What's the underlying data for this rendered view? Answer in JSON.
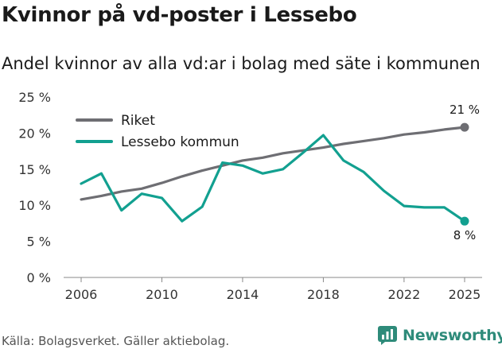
{
  "header": {
    "title": "Kvinnor på vd-poster i Lessebo",
    "subtitle": "Andel kvinnor av alla vd:ar i bolag med säte i kommunen"
  },
  "footer": {
    "source": "Källa: Bolagsverket. Gäller aktiebolag.",
    "brand": "Newsworthy",
    "brand_color": "#2e8b7a"
  },
  "chart_data": {
    "type": "line",
    "title": "Kvinnor på vd-poster i Lessebo",
    "subtitle": "Andel kvinnor av alla vd:ar i bolag med säte i kommunen",
    "xlabel": "",
    "ylabel": "",
    "xlim": [
      2006,
      2025
    ],
    "ylim": [
      0,
      25
    ],
    "x_ticks": [
      2006,
      2010,
      2014,
      2018,
      2022,
      2025
    ],
    "y_ticks": [
      0,
      5,
      10,
      15,
      20,
      25
    ],
    "y_tick_labels": [
      "0 %",
      "5 %",
      "10 %",
      "15 %",
      "20 %",
      "25 %"
    ],
    "grid": false,
    "legend_position": "top-left",
    "x": [
      2006,
      2007,
      2008,
      2009,
      2010,
      2011,
      2012,
      2013,
      2014,
      2015,
      2016,
      2017,
      2018,
      2019,
      2020,
      2021,
      2022,
      2023,
      2024,
      2025
    ],
    "series": [
      {
        "name": "Riket",
        "color": "#6e6e73",
        "values": [
          10.8,
          11.3,
          11.9,
          12.3,
          13.1,
          14.0,
          14.8,
          15.5,
          16.2,
          16.6,
          17.2,
          17.6,
          18.0,
          18.5,
          18.9,
          19.3,
          19.8,
          20.1,
          20.5,
          20.8
        ],
        "end_label": "21 %"
      },
      {
        "name": "Lessebo kommun",
        "color": "#12a090",
        "values": [
          13.0,
          14.4,
          9.3,
          11.6,
          11.0,
          7.8,
          9.8,
          15.9,
          15.5,
          14.4,
          15.0,
          17.3,
          19.7,
          16.2,
          14.6,
          12.0,
          9.9,
          9.7,
          9.7,
          7.8
        ],
        "end_label": "8 %"
      }
    ]
  }
}
